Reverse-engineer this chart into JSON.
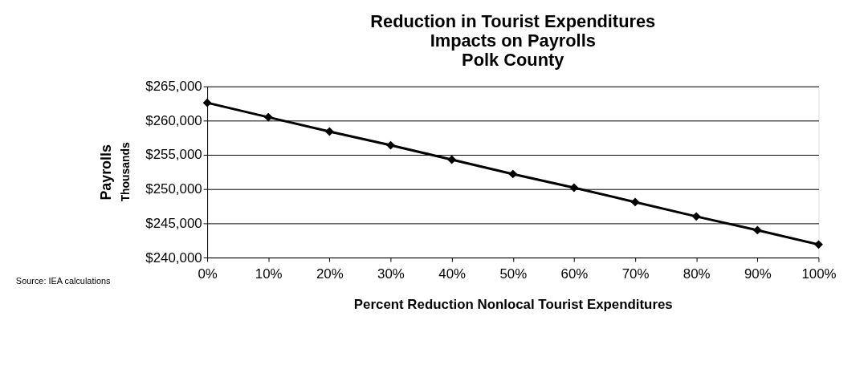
{
  "chart_data": {
    "type": "line",
    "title": "Reduction in Tourist Expenditures\nImpacts on Payrolls\nPolk County",
    "xlabel": "Percent Reduction Nonlocal Tourist Expenditures",
    "ylabel": "Payrolls",
    "annotations": [
      "Thousands",
      "Source: IEA calculations"
    ],
    "x": [
      0,
      10,
      20,
      30,
      40,
      50,
      60,
      70,
      80,
      90,
      100
    ],
    "series": [
      {
        "color": "#000000",
        "values": [
          262600,
          260500,
          258400,
          256400,
          254300,
          252200,
          250200,
          248100,
          246000,
          244000,
          241900
        ]
      }
    ],
    "xlim": [
      0,
      100
    ],
    "xticks": [
      {
        "value": 0,
        "label": "0%"
      },
      {
        "value": 10,
        "label": "10%"
      },
      {
        "value": 20,
        "label": "20%"
      },
      {
        "value": 30,
        "label": "30%"
      },
      {
        "value": 40,
        "label": "40%"
      },
      {
        "value": 50,
        "label": "50%"
      },
      {
        "value": 60,
        "label": "60%"
      },
      {
        "value": 70,
        "label": "70%"
      },
      {
        "value": 80,
        "label": "80%"
      },
      {
        "value": 90,
        "label": "90%"
      },
      {
        "value": 100,
        "label": "100%"
      }
    ],
    "ylim": [
      240000,
      265000
    ],
    "yticks": [
      {
        "value": 240000,
        "label": "$240,000"
      },
      {
        "value": 245000,
        "label": "$245,000"
      },
      {
        "value": 250000,
        "label": "$250,000"
      },
      {
        "value": 255000,
        "label": "$255,000"
      },
      {
        "value": 260000,
        "label": "$260,000"
      },
      {
        "value": 265000,
        "label": "$265,000"
      }
    ],
    "grid": "y",
    "legend": false,
    "marker": "diamond",
    "line_style": "solid"
  }
}
